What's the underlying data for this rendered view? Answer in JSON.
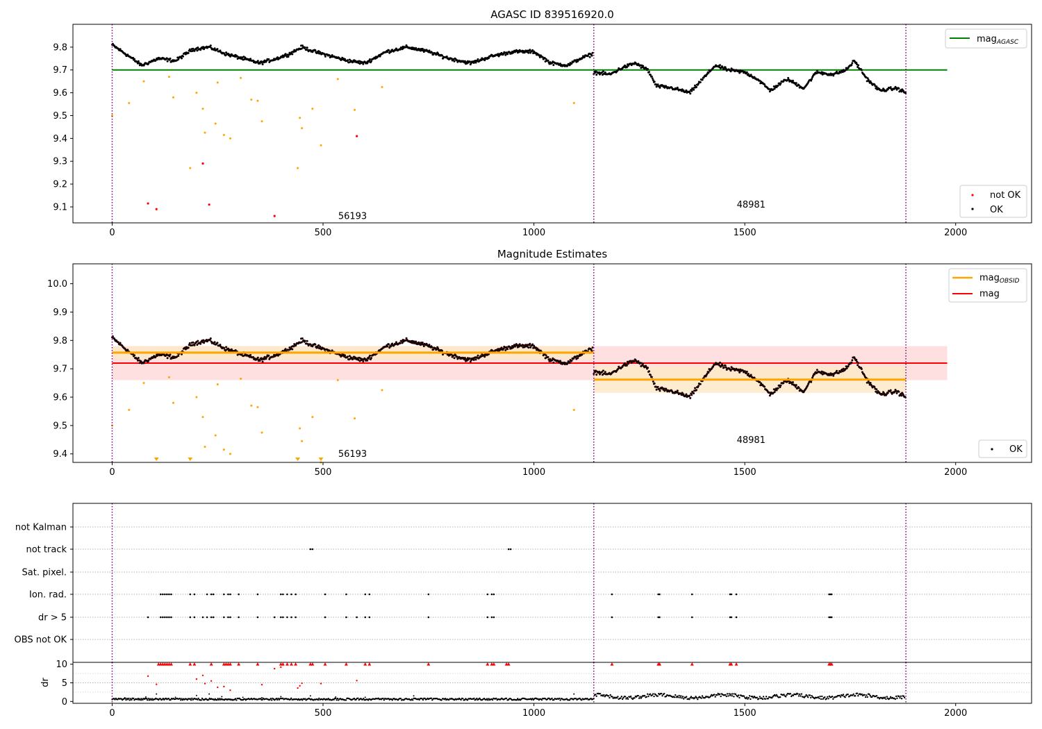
{
  "chart_data": [
    {
      "type": "scatter",
      "title": "AGASC ID 839516920.0",
      "xlim": [
        -93,
        2180
      ],
      "ylim": [
        9.03,
        9.9
      ],
      "xticks": [
        0,
        500,
        1000,
        1500,
        2000
      ],
      "yticks": [
        9.1,
        9.2,
        9.3,
        9.4,
        9.5,
        9.6,
        9.7,
        9.8
      ],
      "obs_boundaries": [
        0,
        1142,
        1882
      ],
      "obs_labels": [
        {
          "text": "56193",
          "x": 570,
          "y": 9.06
        },
        {
          "text": "48981",
          "x": 1515,
          "y": 9.11
        }
      ],
      "mag_agasc": {
        "name": "mag_AGASC",
        "value": 9.7,
        "x": [
          0,
          1980
        ],
        "color": "#008000"
      },
      "ok_segments": [
        {
          "x": [
            0,
            1140
          ],
          "knots": [
            [
              0,
              9.81
            ],
            [
              40,
              9.76
            ],
            [
              70,
              9.72
            ],
            [
              110,
              9.75
            ],
            [
              150,
              9.74
            ],
            [
              190,
              9.79
            ],
            [
              230,
              9.8
            ],
            [
              270,
              9.77
            ],
            [
              310,
              9.75
            ],
            [
              350,
              9.73
            ],
            [
              390,
              9.75
            ],
            [
              420,
              9.77
            ],
            [
              450,
              9.8
            ],
            [
              480,
              9.78
            ],
            [
              520,
              9.76
            ],
            [
              560,
              9.74
            ],
            [
              600,
              9.73
            ],
            [
              650,
              9.78
            ],
            [
              700,
              9.8
            ],
            [
              750,
              9.78
            ],
            [
              800,
              9.75
            ],
            [
              850,
              9.73
            ],
            [
              900,
              9.76
            ],
            [
              950,
              9.78
            ],
            [
              1000,
              9.78
            ],
            [
              1040,
              9.73
            ],
            [
              1080,
              9.72
            ],
            [
              1110,
              9.75
            ],
            [
              1140,
              9.77
            ]
          ]
        },
        {
          "x": [
            1142,
            1882
          ],
          "knots": [
            [
              1142,
              9.69
            ],
            [
              1180,
              9.68
            ],
            [
              1210,
              9.71
            ],
            [
              1240,
              9.73
            ],
            [
              1270,
              9.7
            ],
            [
              1290,
              9.63
            ],
            [
              1330,
              9.62
            ],
            [
              1370,
              9.6
            ],
            [
              1400,
              9.66
            ],
            [
              1430,
              9.72
            ],
            [
              1460,
              9.7
            ],
            [
              1500,
              9.69
            ],
            [
              1530,
              9.66
            ],
            [
              1560,
              9.61
            ],
            [
              1600,
              9.66
            ],
            [
              1640,
              9.62
            ],
            [
              1670,
              9.69
            ],
            [
              1710,
              9.68
            ],
            [
              1740,
              9.7
            ],
            [
              1760,
              9.74
            ],
            [
              1790,
              9.66
            ],
            [
              1820,
              9.61
            ],
            [
              1860,
              9.62
            ],
            [
              1882,
              9.6
            ]
          ]
        }
      ],
      "outliers_orange": [
        [
          0,
          9.5
        ],
        [
          40,
          9.555
        ],
        [
          75,
          9.65
        ],
        [
          135,
          9.67
        ],
        [
          145,
          9.58
        ],
        [
          185,
          9.27
        ],
        [
          200,
          9.6
        ],
        [
          215,
          9.53
        ],
        [
          220,
          9.425
        ],
        [
          245,
          9.465
        ],
        [
          250,
          9.645
        ],
        [
          265,
          9.415
        ],
        [
          280,
          9.4
        ],
        [
          305,
          9.665
        ],
        [
          330,
          9.57
        ],
        [
          345,
          9.565
        ],
        [
          355,
          9.475
        ],
        [
          440,
          9.27
        ],
        [
          445,
          9.49
        ],
        [
          450,
          9.445
        ],
        [
          475,
          9.53
        ],
        [
          495,
          9.37
        ],
        [
          535,
          9.66
        ],
        [
          575,
          9.525
        ],
        [
          640,
          9.625
        ],
        [
          1095,
          9.555
        ]
      ],
      "outliers_red": [
        [
          85,
          9.115
        ],
        [
          105,
          9.09
        ],
        [
          215,
          9.29
        ],
        [
          230,
          9.11
        ],
        [
          385,
          9.06
        ],
        [
          580,
          9.41
        ]
      ],
      "legend_top": [
        "mag"
      ],
      "legend_bottom": [
        "not OK",
        "OK"
      ],
      "colors": {
        "ok": "#000000",
        "not_ok": "#ff0000",
        "outlier": "#ffa500",
        "obs_line": "#800080",
        "agasc": "#008000"
      }
    },
    {
      "type": "scatter",
      "title": "Magnitude Estimates",
      "xlim": [
        -93,
        2180
      ],
      "ylim": [
        9.37,
        10.07
      ],
      "xticks": [
        0,
        500,
        1000,
        1500,
        2000
      ],
      "yticks": [
        9.4,
        9.5,
        9.6,
        9.7,
        9.8,
        9.9,
        10.0
      ],
      "obs_labels": [
        {
          "text": "56193",
          "x": 570,
          "y": 9.4
        },
        {
          "text": "48981",
          "x": 1515,
          "y": 9.45
        }
      ],
      "mag_obsid": [
        {
          "x": [
            0,
            1142
          ],
          "value": 9.757,
          "band": [
            9.735,
            9.778
          ]
        },
        {
          "x": [
            1142,
            1882
          ],
          "value": 9.662,
          "band": [
            9.615,
            9.71
          ]
        }
      ],
      "mag": {
        "value": 9.72,
        "band": [
          9.66,
          9.78
        ],
        "x": [
          0,
          1980
        ]
      },
      "triangles": [
        105,
        185,
        440,
        495
      ],
      "legend_top": [
        "mag",
        "mag"
      ],
      "legend_bottom": [
        "OK"
      ],
      "colors": {
        "mag_obsid": "#ffa500",
        "mag": "#ff0000",
        "mag_band": "#ffe0e0",
        "obsid_band": "#fde9c8"
      }
    },
    {
      "type": "scatter",
      "xlim": [
        -93,
        2180
      ],
      "xticks": [
        0,
        500,
        1000,
        1500,
        2000
      ],
      "categories": [
        "not Kalman",
        "not track",
        "Sat. pixel.",
        "Ion. rad.",
        "dr > 5",
        "OBS not OK"
      ],
      "flags": {
        "not track": [
          470,
          940
        ],
        "Ion. rad.": [
          115,
          120,
          125,
          130,
          135,
          140,
          185,
          195,
          225,
          235,
          240,
          265,
          275,
          280,
          300,
          345,
          400,
          405,
          415,
          425,
          435,
          505,
          555,
          600,
          610,
          750,
          890,
          900,
          905,
          1185,
          1295,
          1298,
          1375,
          1465,
          1468,
          1480,
          1700,
          1703,
          1706
        ],
        "dr > 5": [
          85,
          115,
          120,
          125,
          130,
          135,
          140,
          185,
          195,
          215,
          225,
          235,
          240,
          265,
          275,
          280,
          300,
          345,
          385,
          400,
          405,
          415,
          425,
          435,
          505,
          555,
          580,
          600,
          610,
          750,
          890,
          900,
          905,
          1185,
          1295,
          1298,
          1375,
          1465,
          1468,
          1480,
          1700,
          1703,
          1706
        ]
      },
      "dr_panel": {
        "ylabel": "dr",
        "yticks": [
          0,
          5,
          10
        ],
        "ylim": [
          -0.5,
          10.5
        ],
        "red_top": [
          110,
          115,
          120,
          125,
          130,
          135,
          140,
          185,
          195,
          235,
          265,
          270,
          275,
          280,
          300,
          345,
          400,
          405,
          415,
          425,
          435,
          470,
          475,
          505,
          555,
          600,
          610,
          750,
          890,
          900,
          905,
          935,
          940,
          1185,
          1295,
          1298,
          1375,
          1465,
          1468,
          1480,
          1700,
          1703,
          1706
        ],
        "red_scatter": [
          [
            85,
            6.8
          ],
          [
            105,
            4.6
          ],
          [
            200,
            6.0
          ],
          [
            215,
            7.0
          ],
          [
            220,
            4.8
          ],
          [
            235,
            5.5
          ],
          [
            250,
            3.8
          ],
          [
            265,
            4.0
          ],
          [
            280,
            3.0
          ],
          [
            355,
            4.5
          ],
          [
            385,
            8.8
          ],
          [
            400,
            9.2
          ],
          [
            440,
            3.6
          ],
          [
            445,
            4.2
          ],
          [
            450,
            4.9
          ],
          [
            495,
            4.8
          ],
          [
            580,
            5.6
          ]
        ],
        "dark_scatter": [
          [
            30,
            1.0
          ],
          [
            80,
            1.2
          ],
          [
            105,
            2.0
          ],
          [
            150,
            1.1
          ],
          [
            200,
            1.6
          ],
          [
            230,
            2.0
          ],
          [
            260,
            1.3
          ],
          [
            310,
            1.1
          ],
          [
            355,
            1.0
          ],
          [
            400,
            1.3
          ],
          [
            470,
            1.5
          ],
          [
            530,
            1.2
          ],
          [
            600,
            1.1
          ],
          [
            715,
            1.5
          ],
          [
            1095,
            2.0
          ]
        ]
      }
    }
  ]
}
